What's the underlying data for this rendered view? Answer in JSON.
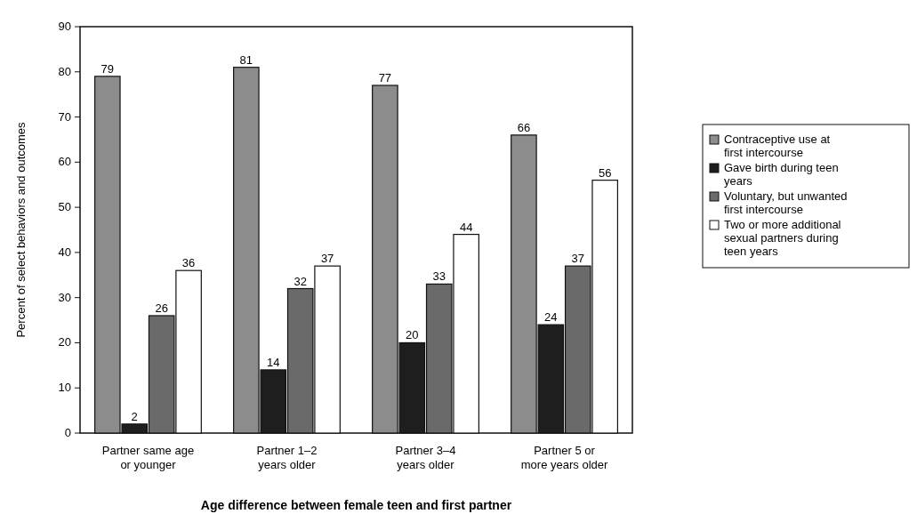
{
  "chart_data": {
    "type": "bar",
    "xlabel": "Age difference between female teen and first partner",
    "ylabel": "Percent of select behaviors and outcomes",
    "categories": [
      "Partner same age or younger",
      "Partner 1–2 years older",
      "Partner 3–4 years older",
      "Partner 5 or more years older"
    ],
    "series": [
      {
        "name": "Contraceptive use at first intercourse",
        "color": "#8c8c8c",
        "values": [
          79,
          81,
          77,
          66
        ]
      },
      {
        "name": "Gave birth during teen years",
        "color": "#1e1e1e",
        "values": [
          2,
          14,
          20,
          24
        ]
      },
      {
        "name": "Voluntary, but unwanted first intercourse",
        "color": "#6a6a6a",
        "values": [
          26,
          32,
          33,
          37
        ]
      },
      {
        "name": "Two or more additional sexual partners during teen years",
        "color": "#ffffff",
        "values": [
          36,
          37,
          44,
          56
        ]
      }
    ],
    "ylim": [
      0,
      90
    ],
    "yticks": [
      0,
      10,
      20,
      30,
      40,
      50,
      60,
      70,
      80,
      90
    ],
    "data_labels": true,
    "legend": "right",
    "grid": false
  }
}
